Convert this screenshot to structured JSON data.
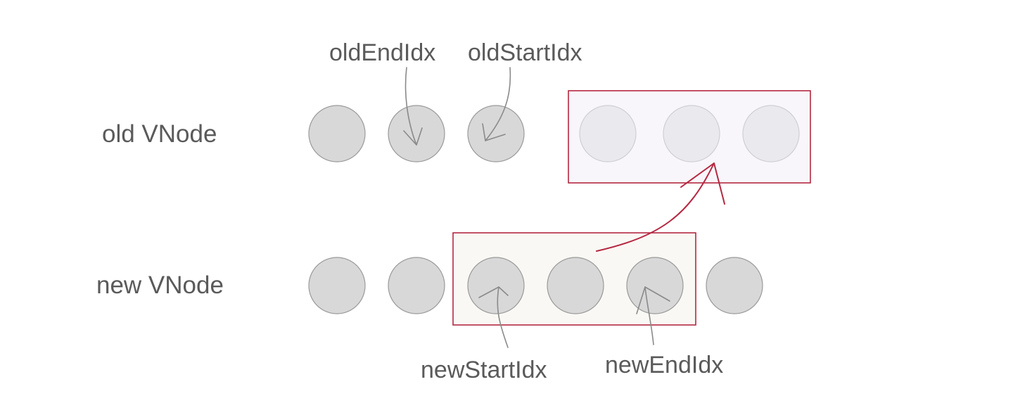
{
  "rows": {
    "old": {
      "label": "old VNode"
    },
    "new": {
      "label": "new VNode"
    }
  },
  "pointers": {
    "old_end": "oldEndIdx",
    "old_start": "oldStartIdx",
    "new_start": "newStartIdx",
    "new_end": "newEndIdx"
  },
  "colors": {
    "node_fill": "#d8d8d8",
    "node_stroke": "#9a9a9a",
    "highlight_box": "#b52842",
    "text": "#5a5a5a"
  }
}
